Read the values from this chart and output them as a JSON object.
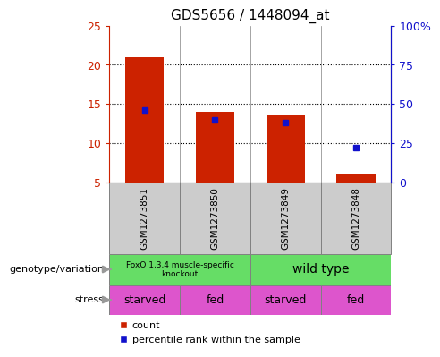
{
  "title": "GDS5656 / 1448094_at",
  "samples": [
    "GSM1273851",
    "GSM1273850",
    "GSM1273849",
    "GSM1273848"
  ],
  "counts": [
    21,
    14,
    13.5,
    6
  ],
  "percentile_ranks": [
    46,
    40,
    38,
    22
  ],
  "ylim_left": [
    5,
    25
  ],
  "ylim_right": [
    0,
    100
  ],
  "yticks_left": [
    5,
    10,
    15,
    20,
    25
  ],
  "yticks_right": [
    0,
    25,
    50,
    75,
    100
  ],
  "bar_color": "#cc2200",
  "dot_color": "#1111cc",
  "bar_width": 0.55,
  "genotype_labels": [
    "FoxO 1,3,4 muscle-specific\nknockout",
    "wild type"
  ],
  "genotype_color": "#66dd66",
  "stress_labels": [
    "starved",
    "fed",
    "starved",
    "fed"
  ],
  "stress_color": "#dd55cc",
  "annotation_genotype": "genotype/variation",
  "annotation_stress": "stress",
  "legend_count": "count",
  "legend_percentile": "percentile rank within the sample",
  "left_tick_color": "#cc2200",
  "right_tick_color": "#1111cc",
  "sample_bg_color": "#cccccc",
  "bg_color": "#ffffff"
}
